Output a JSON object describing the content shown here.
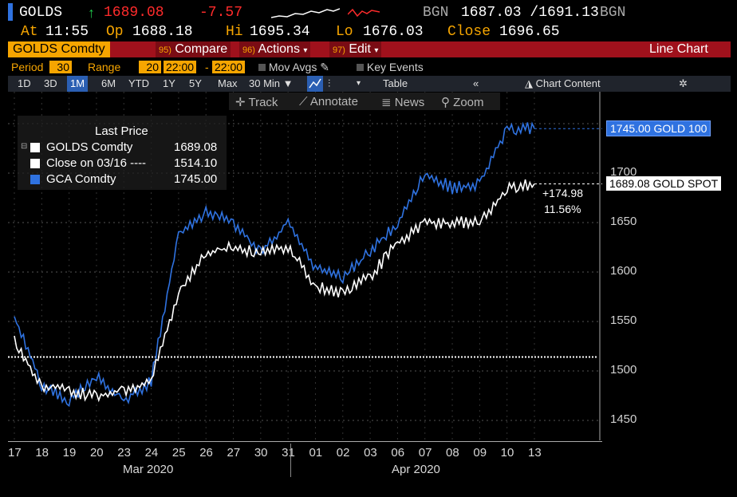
{
  "header": {
    "ticker": "GOLDS",
    "arrow": "↑",
    "last": "1689.08",
    "change": "-7.57",
    "source_left": "BGN",
    "bid_ask": "1687.03 /1691.13",
    "source_right": "BGN"
  },
  "quote": {
    "at_label": "At",
    "at_value": "11:55",
    "op_label": "Op",
    "op_value": "1688.18",
    "hi_label": "Hi",
    "hi_value": "1695.34",
    "lo_label": "Lo",
    "lo_value": "1676.03",
    "close_label": "Close",
    "close_value": "1696.65"
  },
  "menubar": {
    "security": "GOLDS Comdty",
    "compare_num": "95)",
    "compare": "Compare",
    "actions_num": "96)",
    "actions": "Actions",
    "edit_num": "97)",
    "edit": "Edit",
    "chart_type": "Line Chart"
  },
  "settings": {
    "period_label": "Period",
    "period_value": "30",
    "range_label": "Range",
    "range_value": "20",
    "time_from": "22:00",
    "dash": "-",
    "time_to": "22:00",
    "mov_avgs": "Mov Avgs",
    "key_events": "Key Events"
  },
  "ranges": {
    "items": [
      "1D",
      "3D",
      "1M",
      "6M",
      "YTD",
      "1Y",
      "5Y",
      "Max"
    ],
    "selected": "1M",
    "interval": "30 Min",
    "table": "Table",
    "chart_content": "Chart Content"
  },
  "tools": {
    "track": "Track",
    "annotate": "Annotate",
    "news": "News",
    "zoom": "Zoom"
  },
  "legend": {
    "title": "Last Price",
    "rows": [
      {
        "name": "GOLDS Comdty",
        "value": "1689.08",
        "color": "#ffffff"
      },
      {
        "name": "Close on 03/16 ----",
        "value": "1514.10",
        "color": "#ffffff"
      },
      {
        "name": "GCA Comdty",
        "value": "1745.00",
        "color": "#2f72e0"
      }
    ]
  },
  "tags": {
    "gold100": "1745.00 GOLD 100",
    "goldspot": "1689.08 GOLD SPOT",
    "diff": "+174.98",
    "pct": "11.56%"
  },
  "chart_data": {
    "type": "line",
    "ylim": [
      1440,
      1770
    ],
    "y_ticks": [
      "1700",
      "1650",
      "1600",
      "1550",
      "1500",
      "1450"
    ],
    "x_ticks": [
      "17",
      "18",
      "19",
      "20",
      "23",
      "24",
      "25",
      "26",
      "27",
      "30",
      "31",
      "01",
      "02",
      "03",
      "06",
      "07",
      "08",
      "09",
      "10",
      "13"
    ],
    "month_labels": [
      "Mar 2020",
      "Apr 2020"
    ],
    "reference_line": {
      "label": "Close on 03/16",
      "value": 1514.1
    },
    "series": [
      {
        "name": "GCA Comdty",
        "color": "#2f72e0",
        "values": [
          1555,
          1485,
          1470,
          1495,
          1470,
          1490,
          1640,
          1660,
          1650,
          1620,
          1650,
          1605,
          1595,
          1620,
          1650,
          1700,
          1685,
          1690,
          1745,
          1745
        ]
      },
      {
        "name": "GOLDS Comdty",
        "color": "#ffffff",
        "values": [
          1530,
          1485,
          1480,
          1475,
          1480,
          1490,
          1580,
          1620,
          1625,
          1620,
          1625,
          1585,
          1580,
          1595,
          1630,
          1650,
          1650,
          1650,
          1685,
          1689.08
        ]
      }
    ]
  },
  "colors": {
    "accent": "#f6a500",
    "menubar": "#a0111c",
    "up": "#1fc74b",
    "down": "#ff2b2b",
    "blue": "#2f72e0"
  }
}
